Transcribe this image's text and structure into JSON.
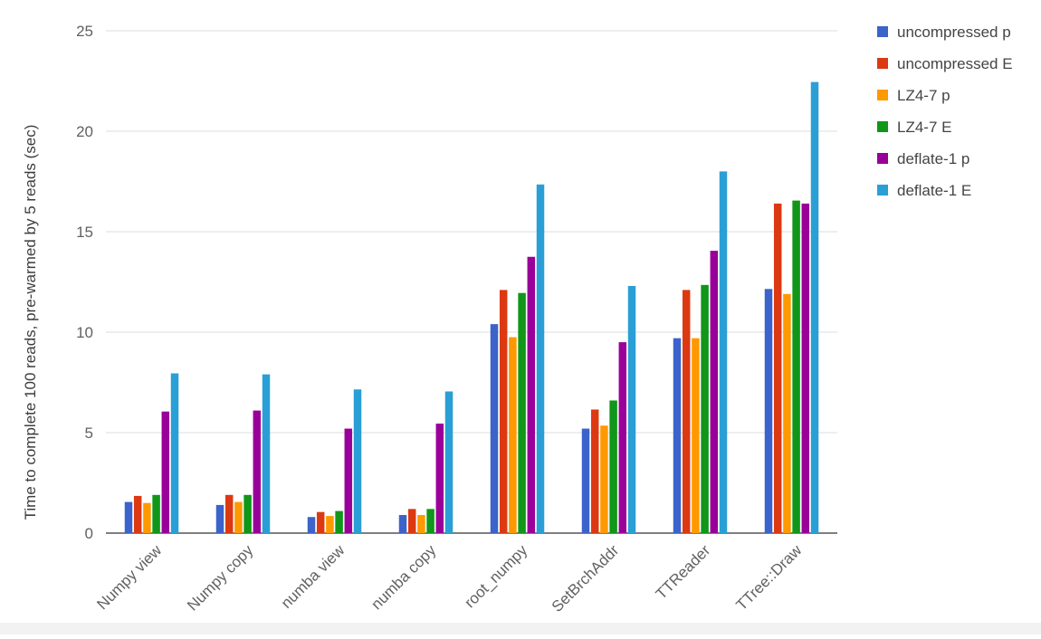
{
  "chart_data": {
    "type": "bar",
    "title": "",
    "xlabel": "",
    "ylabel": "Time to complete 100 reads, pre-warmed by 5 reads (sec)",
    "ylim": [
      0,
      25
    ],
    "yticks": [
      0,
      5,
      10,
      15,
      20,
      25
    ],
    "grid": true,
    "legend_position": "right",
    "categories": [
      "Numpy view",
      "Numpy copy",
      "numba view",
      "numba copy",
      "root_numpy",
      "SetBrchAddr",
      "TTReader",
      "TTree::Draw"
    ],
    "series": [
      {
        "name": "uncompressed p",
        "color": "#3b63c9",
        "values": [
          1.55,
          1.4,
          0.8,
          0.9,
          10.4,
          5.2,
          9.7,
          12.15
        ]
      },
      {
        "name": "uncompressed E",
        "color": "#dc3912",
        "values": [
          1.85,
          1.9,
          1.05,
          1.2,
          12.1,
          6.15,
          12.1,
          16.4
        ]
      },
      {
        "name": "LZ4-7 p",
        "color": "#ff9900",
        "values": [
          1.5,
          1.55,
          0.85,
          0.9,
          9.75,
          5.35,
          9.7,
          11.9
        ]
      },
      {
        "name": "LZ4-7 E",
        "color": "#109618",
        "values": [
          1.9,
          1.9,
          1.1,
          1.2,
          11.95,
          6.6,
          12.35,
          16.55
        ]
      },
      {
        "name": "deflate-1 p",
        "color": "#990099",
        "values": [
          6.05,
          6.1,
          5.2,
          5.45,
          13.75,
          9.5,
          14.05,
          16.4
        ]
      },
      {
        "name": "deflate-1 E",
        "color": "#2a9fd6",
        "values": [
          7.95,
          7.9,
          7.15,
          7.05,
          17.35,
          12.3,
          18.0,
          22.45
        ]
      }
    ]
  }
}
